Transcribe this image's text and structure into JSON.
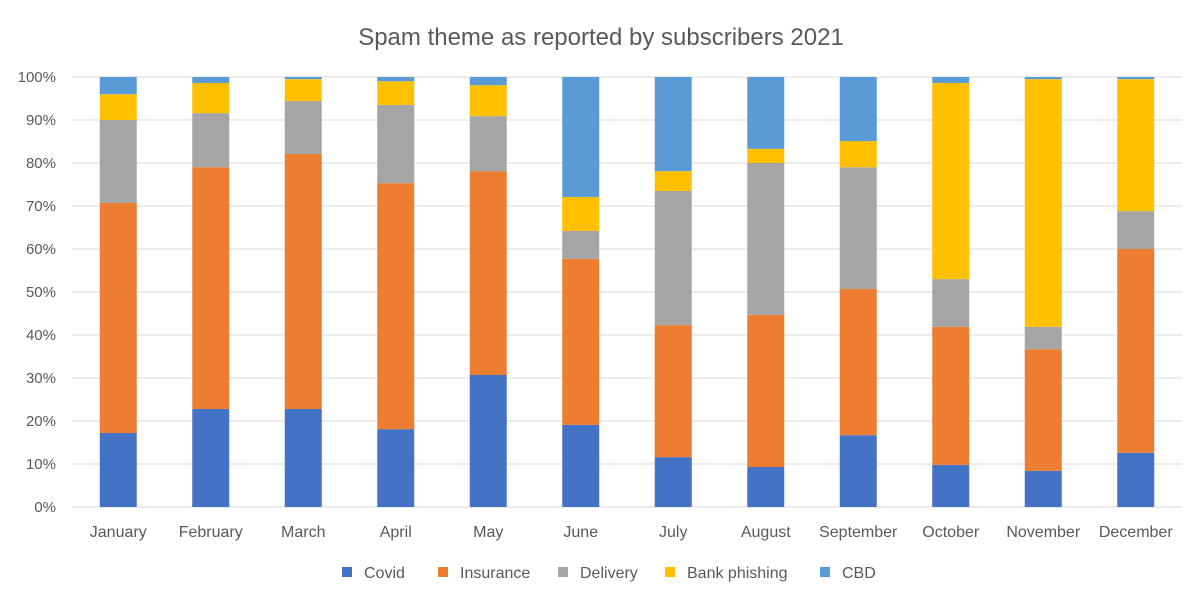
{
  "chart_data": {
    "type": "bar",
    "stacked": "percent",
    "title": "Spam theme as reported by subscribers 2021",
    "xlabel": "",
    "ylabel": "",
    "ylim": [
      0,
      100
    ],
    "yticks": [
      "0%",
      "10%",
      "20%",
      "30%",
      "40%",
      "50%",
      "60%",
      "70%",
      "80%",
      "90%",
      "100%"
    ],
    "grid": true,
    "legend_position": "bottom",
    "categories": [
      "January",
      "February",
      "March",
      "April",
      "May",
      "June",
      "July",
      "August",
      "September",
      "October",
      "November",
      "December"
    ],
    "series": [
      {
        "name": "Covid",
        "color": "#4472C4",
        "values": [
          17.2,
          22.8,
          22.8,
          18.1,
          30.7,
          19.1,
          11.6,
          9.3,
          16.7,
          9.8,
          8.4,
          12.6
        ]
      },
      {
        "name": "Insurance",
        "color": "#ED7D31",
        "values": [
          53.5,
          56.2,
          59.3,
          57.2,
          47.4,
          38.6,
          30.7,
          35.4,
          34.0,
          32.1,
          28.3,
          47.4
        ]
      },
      {
        "name": "Delivery",
        "color": "#A5A5A5",
        "values": [
          19.3,
          12.6,
          12.3,
          18.2,
          12.8,
          6.5,
          31.2,
          35.3,
          28.3,
          11.1,
          5.2,
          8.8
        ]
      },
      {
        "name": "Bank phishing",
        "color": "#FFC000",
        "values": [
          6.0,
          7.0,
          5.1,
          5.5,
          7.2,
          7.9,
          4.6,
          3.3,
          6.1,
          45.6,
          57.6,
          30.7
        ]
      },
      {
        "name": "CBD",
        "color": "#5B9BD5",
        "values": [
          4.0,
          1.4,
          0.5,
          1.0,
          1.9,
          27.9,
          21.9,
          16.7,
          14.9,
          1.4,
          0.5,
          0.5
        ]
      }
    ]
  }
}
